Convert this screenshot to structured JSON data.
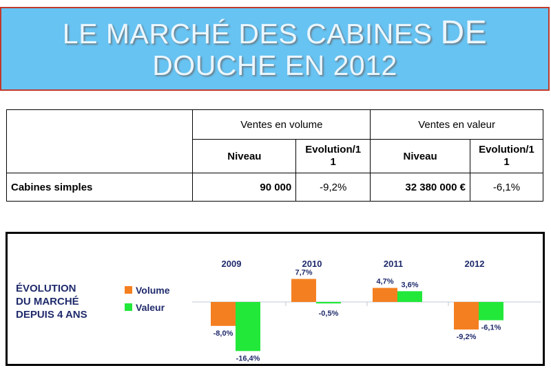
{
  "title": {
    "line1_main": "LE MARCHÉ DES CABINES",
    "line1_big": "DE",
    "line2": "DOUCHE EN 2012"
  },
  "table": {
    "group_headers": [
      "Ventes en volume",
      "Ventes en valeur"
    ],
    "sub_headers": [
      "Niveau",
      "Evolution/1\n1",
      "Niveau",
      "Evolution/1\n1"
    ],
    "rows": [
      {
        "label": "Cabines simples",
        "volume_niveau": "90 000",
        "volume_evolution": "-9,2%",
        "valeur_niveau": "32 380 000 €",
        "valeur_evolution": "-6,1%"
      }
    ]
  },
  "chart_data": {
    "type": "bar",
    "title": "ÉVOLUTION\nDU MARCHÉ\nDEPUIS 4 ANS",
    "categories": [
      "2009",
      "2010",
      "2011",
      "2012"
    ],
    "series": [
      {
        "name": "Volume",
        "color": "#f47f20",
        "values": [
          -8.0,
          7.7,
          4.7,
          -9.2
        ],
        "labels": [
          "-8,0%",
          "7,7%",
          "4,7%",
          "-9,2%"
        ]
      },
      {
        "name": "Valeur",
        "color": "#22e83a",
        "values": [
          -16.4,
          -0.5,
          3.6,
          -6.1
        ],
        "labels": [
          "-16,4%",
          "-0,5%",
          "3,6%",
          "-6,1%"
        ]
      }
    ],
    "legend_position": "left",
    "text_color": "#1f2a6b",
    "ylim": [
      -17,
      8
    ]
  }
}
